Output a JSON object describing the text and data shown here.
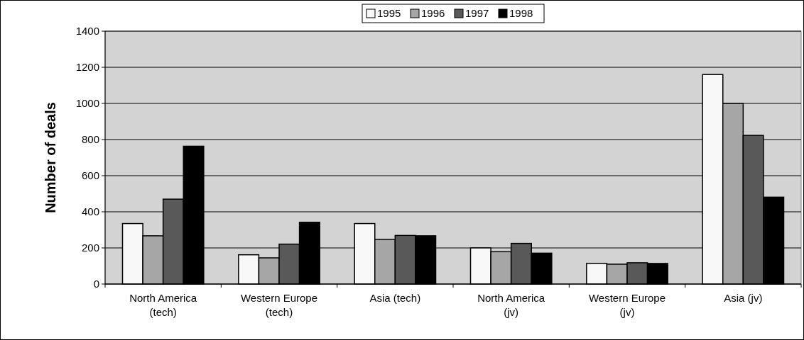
{
  "chart_data": {
    "type": "bar",
    "ylabel": "Number of deals",
    "categories": [
      "North America (tech)",
      "Western Europe (tech)",
      "Asia (tech)",
      "North America (jv)",
      "Western Europe (jv)",
      "Asia (jv)"
    ],
    "series": [
      {
        "name": "1995",
        "color": "#f8f8f8",
        "values": [
          335,
          162,
          335,
          200,
          114,
          1160
        ]
      },
      {
        "name": "1996",
        "color": "#a6a6a6",
        "values": [
          267,
          145,
          247,
          179,
          110,
          1000
        ]
      },
      {
        "name": "1997",
        "color": "#595959",
        "values": [
          470,
          221,
          269,
          225,
          118,
          823
        ]
      },
      {
        "name": "1998",
        "color": "#000000",
        "values": [
          763,
          342,
          267,
          171,
          114,
          481
        ]
      }
    ],
    "ylim": [
      0,
      1400
    ],
    "yticks": [
      0,
      200,
      400,
      600,
      800,
      1000,
      1200,
      1400
    ],
    "grid": "y",
    "legend": "top"
  }
}
